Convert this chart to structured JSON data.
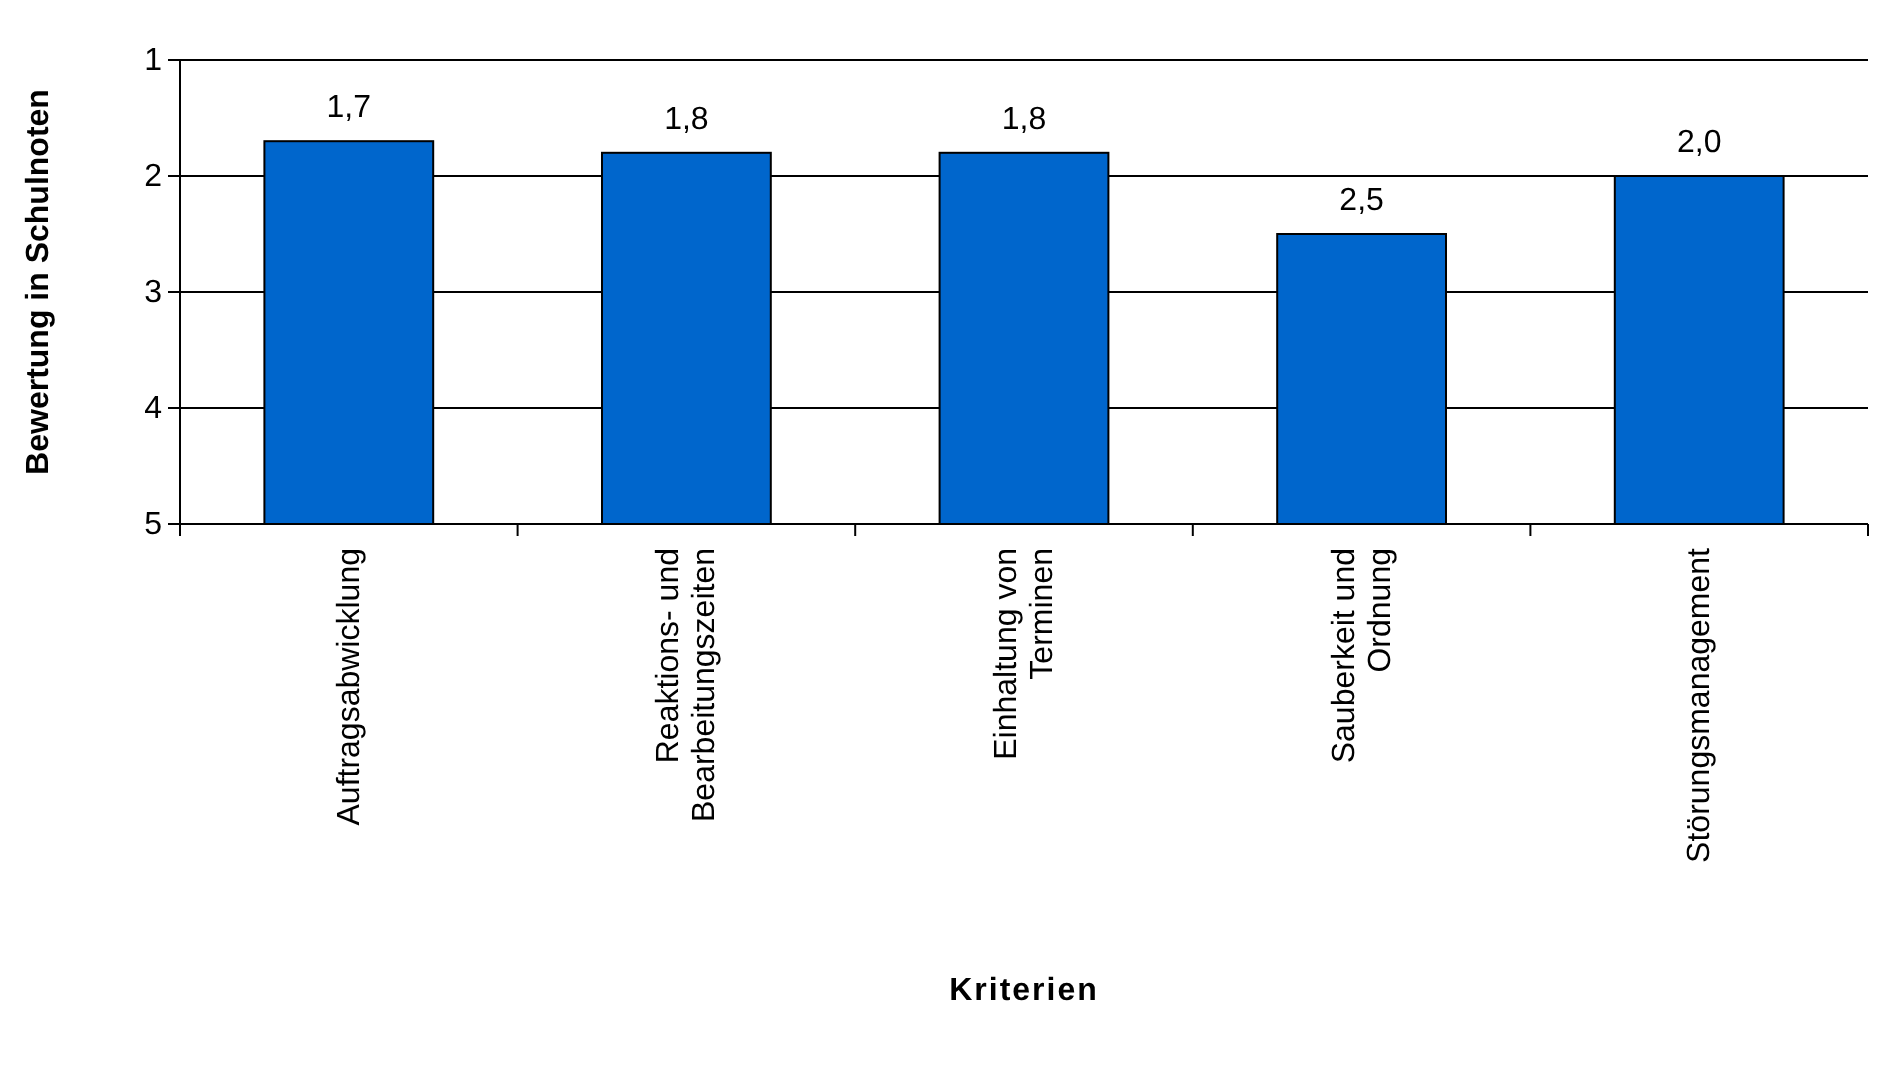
{
  "chart_data": {
    "type": "bar",
    "xlabel": "Kriterien",
    "ylabel": "Bewertung in Schulnoten",
    "categories": [
      "Auftragsabwicklung",
      "Reaktions- und Bearbeitungszeiten",
      "Einhaltung von Terminen",
      "Sauberkeit und Ordnung",
      "Störungsmanagement"
    ],
    "base": [
      5,
      5,
      5,
      5,
      5
    ],
    "values": [
      -3.3,
      -3.2,
      -3.2,
      -2.5,
      -3.0
    ],
    "annotations": [
      {
        "text": "1,7",
        "x": "Auftragsabwicklung",
        "y": 1.7
      },
      {
        "text": "1,8",
        "x": "Reaktions- und Bearbeitungszeiten",
        "y": 1.8
      },
      {
        "text": "1,8",
        "x": "Einhaltung von Terminen",
        "y": 1.8
      },
      {
        "text": "2,5",
        "x": "Sauberkeit und Ordnung",
        "y": 2.5
      },
      {
        "text": "2,0",
        "x": "Störungsmanagement",
        "y": 2.0
      }
    ],
    "color": "#0066cc",
    "ylim": [
      5,
      1
    ],
    "yticks": [
      1,
      2,
      3,
      4,
      5
    ],
    "grid": "y"
  }
}
